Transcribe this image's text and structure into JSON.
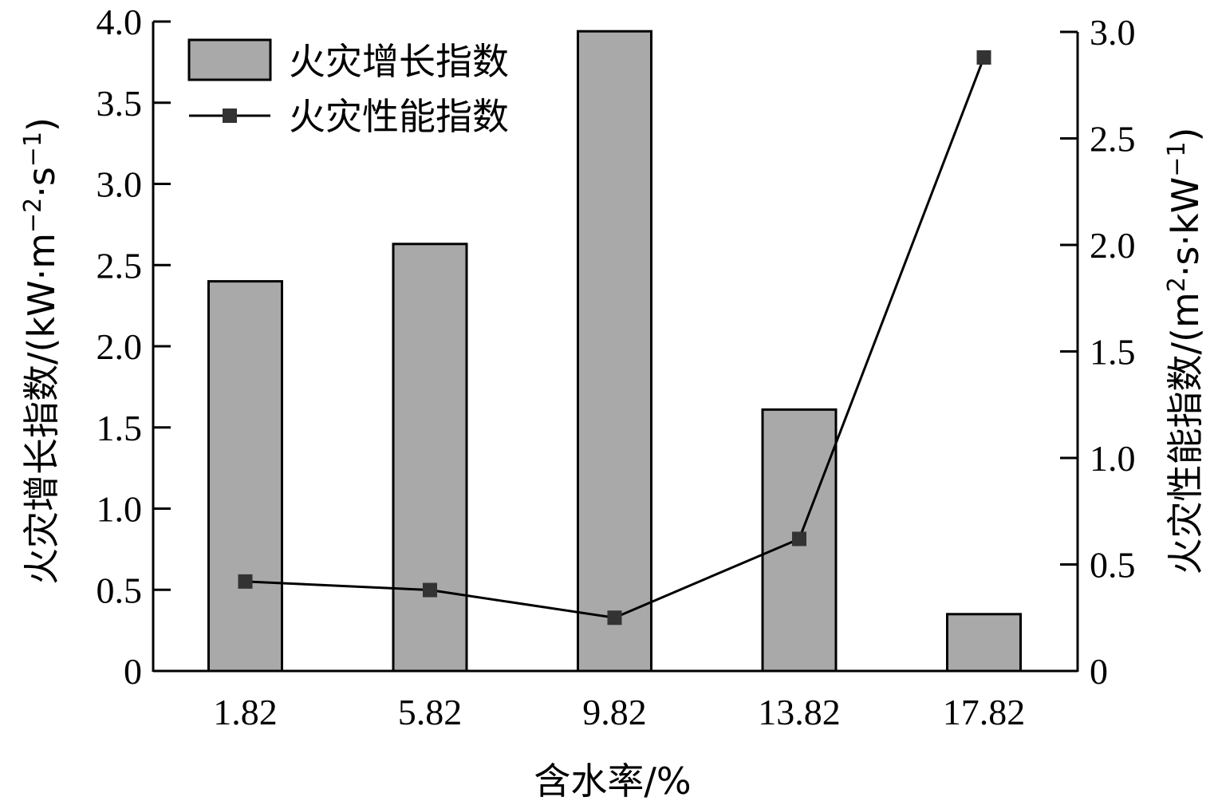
{
  "chart_data": {
    "type": "bar",
    "categories": [
      "1.82",
      "5.82",
      "9.82",
      "13.82",
      "17.82"
    ],
    "series": [
      {
        "name": "火灾增长指数",
        "kind": "bar",
        "axis": "left",
        "values": [
          2.4,
          2.63,
          3.94,
          1.61,
          0.35
        ]
      },
      {
        "name": "火灾性能指数",
        "kind": "line",
        "axis": "right",
        "values": [
          0.42,
          0.38,
          0.25,
          0.62,
          2.88
        ]
      }
    ],
    "xlabel": "含水率/%",
    "ylabel_left": {
      "main": "火灾增长指数/(kW·m",
      "sup1": "−2",
      "mid": "·s",
      "sup2": "−1",
      "end": ")"
    },
    "ylabel_right": {
      "main": "火灾性能指数/(m",
      "sup1": "2",
      "mid": "·s·kW",
      "sup2": "−1",
      "end": ")"
    },
    "ylim_left": [
      0,
      4.0
    ],
    "yticks_left": [
      "0",
      "0.5",
      "1.0",
      "1.5",
      "2.0",
      "2.5",
      "3.0",
      "3.5",
      "4.0"
    ],
    "ylim_right": [
      0,
      3.0
    ],
    "yticks_right": [
      "0",
      "0.5",
      "1.0",
      "1.5",
      "2.0",
      "2.5",
      "3.0"
    ],
    "grid": false,
    "legend_position": "top-left",
    "colors": {
      "bar_fill": "#a9a9a9",
      "bar_stroke": "#000000",
      "line": "#000000",
      "marker": "#333333"
    }
  }
}
